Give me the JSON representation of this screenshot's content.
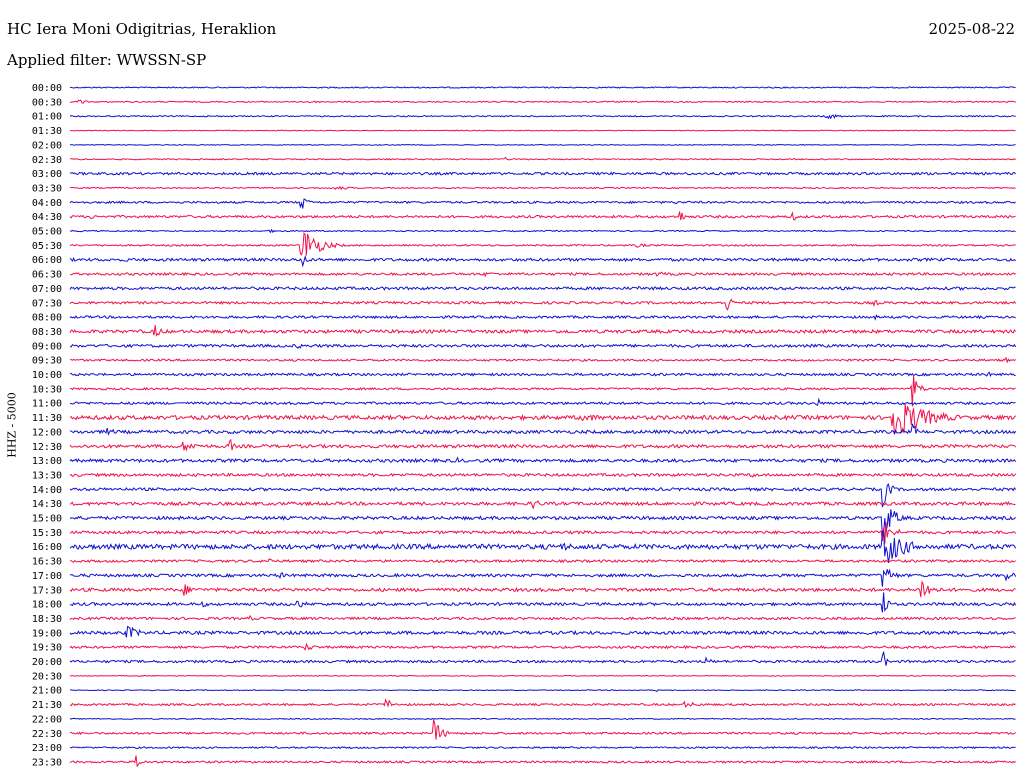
{
  "header": {
    "station": "HC Iera Moni Odigitrias, Heraklion",
    "date": "2025-08-22",
    "filter": "Applied filter: WWSSN-SP",
    "channel": "HHZ - 5000"
  },
  "chart_data": {
    "type": "line",
    "title": "HC Iera Moni Odigitrias, Heraklion",
    "ylabel": "HHZ - 5000",
    "colors": {
      "odd": "#1010d0",
      "even": "#f0104a"
    },
    "rows": [
      {
        "label": "00:00",
        "color": "blue",
        "noise": 0.6,
        "events": [
          [
            0.57,
            0.6,
            1
          ],
          [
            0.62,
            0.3,
            1
          ]
        ]
      },
      {
        "label": "00:30",
        "color": "red",
        "noise": 0.6,
        "events": [
          [
            0.01,
            2.5,
            0.8
          ],
          [
            0.25,
            1.8,
            1.5
          ],
          [
            0.62,
            1.2,
            0.5
          ]
        ]
      },
      {
        "label": "01:00",
        "color": "blue",
        "noise": 0.6,
        "events": [
          [
            0.17,
            1.0,
            1
          ],
          [
            0.8,
            3,
            1.5
          ]
        ]
      },
      {
        "label": "01:30",
        "color": "red",
        "noise": 0.4,
        "events": []
      },
      {
        "label": "02:00",
        "color": "blue",
        "noise": 0.4,
        "events": []
      },
      {
        "label": "02:30",
        "color": "red",
        "noise": 0.6,
        "events": [
          [
            0.46,
            2,
            0.3
          ]
        ]
      },
      {
        "label": "03:00",
        "color": "blue",
        "noise": 1.2,
        "events": [
          [
            0.7,
            1.2,
            1
          ]
        ]
      },
      {
        "label": "03:30",
        "color": "red",
        "noise": 0.6,
        "events": [
          [
            0.28,
            2,
            2
          ]
        ]
      },
      {
        "label": "04:00",
        "color": "blue",
        "noise": 1.0,
        "events": [
          [
            0.245,
            9,
            0.5
          ],
          [
            0.64,
            2,
            0.5
          ]
        ]
      },
      {
        "label": "04:30",
        "color": "red",
        "noise": 1.2,
        "events": [
          [
            0.02,
            3,
            0.8
          ],
          [
            0.645,
            8,
            0.4
          ],
          [
            0.765,
            4,
            0.6
          ]
        ]
      },
      {
        "label": "05:00",
        "color": "blue",
        "noise": 0.6,
        "events": [
          [
            0.21,
            1.5,
            2
          ]
        ]
      },
      {
        "label": "05:30",
        "color": "red",
        "noise": 0.8,
        "events": [
          [
            0.245,
            22,
            1.5
          ],
          [
            0.6,
            2,
            1.5
          ]
        ]
      },
      {
        "label": "06:00",
        "color": "blue",
        "noise": 1.4,
        "events": [
          [
            0.245,
            12,
            0.4
          ],
          [
            0.06,
            2,
            2
          ]
        ]
      },
      {
        "label": "06:30",
        "color": "red",
        "noise": 1.2,
        "events": [
          [
            0.44,
            2.5,
            1.5
          ],
          [
            0.62,
            2.5,
            2
          ]
        ]
      },
      {
        "label": "07:00",
        "color": "blue",
        "noise": 1.4,
        "events": [
          [
            0.6,
            2,
            5
          ]
        ]
      },
      {
        "label": "07:30",
        "color": "red",
        "noise": 1.2,
        "events": [
          [
            0.695,
            10,
            0.4
          ],
          [
            0.85,
            3,
            1
          ]
        ]
      },
      {
        "label": "08:00",
        "color": "blue",
        "noise": 1.2,
        "events": [
          [
            0.85,
            2.5,
            1
          ]
        ]
      },
      {
        "label": "08:30",
        "color": "red",
        "noise": 1.6,
        "events": [
          [
            0.09,
            7,
            0.8
          ],
          [
            0.52,
            2.5,
            3
          ]
        ]
      },
      {
        "label": "09:00",
        "color": "blue",
        "noise": 1.4,
        "events": [
          [
            0.24,
            3,
            1
          ],
          [
            0.85,
            3,
            0.8
          ]
        ]
      },
      {
        "label": "09:30",
        "color": "red",
        "noise": 1.0,
        "events": [
          [
            0.99,
            3,
            0.3
          ]
        ]
      },
      {
        "label": "10:00",
        "color": "blue",
        "noise": 1.2,
        "events": [
          [
            0.97,
            4,
            0.3
          ]
        ]
      },
      {
        "label": "10:30",
        "color": "red",
        "noise": 1.0,
        "events": [
          [
            0.89,
            20,
            0.6
          ]
        ]
      },
      {
        "label": "11:00",
        "color": "blue",
        "noise": 1.2,
        "events": [
          [
            0.79,
            6,
            0.4
          ]
        ]
      },
      {
        "label": "11:30",
        "color": "red",
        "noise": 2.0,
        "events": [
          [
            0.87,
            24,
            3
          ],
          [
            0.54,
            4,
            4
          ]
        ]
      },
      {
        "label": "12:00",
        "color": "blue",
        "noise": 1.6,
        "events": [
          [
            0.04,
            4,
            1
          ],
          [
            0.89,
            9,
            0.6
          ]
        ]
      },
      {
        "label": "12:30",
        "color": "red",
        "noise": 1.6,
        "events": [
          [
            0.12,
            5,
            2
          ],
          [
            0.17,
            8,
            0.3
          ]
        ]
      },
      {
        "label": "13:00",
        "color": "blue",
        "noise": 1.6,
        "events": [
          [
            0.41,
            3,
            1
          ]
        ]
      },
      {
        "label": "13:30",
        "color": "red",
        "noise": 1.4,
        "events": [
          [
            0.72,
            3,
            1
          ]
        ]
      },
      {
        "label": "14:00",
        "color": "blue",
        "noise": 1.4,
        "events": [
          [
            0.86,
            18,
            0.6
          ]
        ]
      },
      {
        "label": "14:30",
        "color": "red",
        "noise": 1.6,
        "events": [
          [
            0.49,
            7,
            0.6
          ]
        ]
      },
      {
        "label": "15:00",
        "color": "blue",
        "noise": 1.6,
        "events": [
          [
            0.86,
            22,
            1
          ]
        ]
      },
      {
        "label": "15:30",
        "color": "red",
        "noise": 1.4,
        "events": [
          [
            0.86,
            14,
            1
          ]
        ]
      },
      {
        "label": "16:00",
        "color": "blue",
        "noise": 2.4,
        "events": [
          [
            0.86,
            22,
            2
          ],
          [
            0.52,
            4,
            3
          ]
        ]
      },
      {
        "label": "16:30",
        "color": "red",
        "noise": 1.2,
        "events": [
          [
            0.21,
            4,
            0.6
          ]
        ]
      },
      {
        "label": "17:00",
        "color": "blue",
        "noise": 1.4,
        "events": [
          [
            0.22,
            4,
            1
          ],
          [
            0.99,
            7,
            0.6
          ],
          [
            0.86,
            14,
            0.8
          ]
        ]
      },
      {
        "label": "17:30",
        "color": "red",
        "noise": 1.6,
        "events": [
          [
            0.12,
            7,
            1
          ],
          [
            0.9,
            14,
            1
          ]
        ]
      },
      {
        "label": "18:00",
        "color": "blue",
        "noise": 1.4,
        "events": [
          [
            0.24,
            5,
            1
          ],
          [
            0.14,
            3,
            1
          ],
          [
            0.86,
            16,
            0.4
          ]
        ]
      },
      {
        "label": "18:30",
        "color": "red",
        "noise": 1.2,
        "events": [
          [
            0.19,
            3,
            0.6
          ]
        ]
      },
      {
        "label": "19:00",
        "color": "blue",
        "noise": 1.6,
        "events": [
          [
            0.06,
            8,
            1.2
          ],
          [
            0.84,
            4,
            0.6
          ]
        ]
      },
      {
        "label": "19:30",
        "color": "red",
        "noise": 1.2,
        "events": [
          [
            0.25,
            4,
            1
          ]
        ]
      },
      {
        "label": "20:00",
        "color": "blue",
        "noise": 1.2,
        "events": [
          [
            0.67,
            5,
            0.8
          ],
          [
            0.86,
            10,
            0.3
          ]
        ]
      },
      {
        "label": "20:30",
        "color": "red",
        "noise": 0.4,
        "events": []
      },
      {
        "label": "21:00",
        "color": "blue",
        "noise": 0.4,
        "events": [
          [
            0.62,
            2,
            0.2
          ]
        ]
      },
      {
        "label": "21:30",
        "color": "red",
        "noise": 1.0,
        "events": [
          [
            0.335,
            9,
            0.4
          ],
          [
            0.65,
            3,
            2
          ]
        ]
      },
      {
        "label": "22:00",
        "color": "blue",
        "noise": 0.5,
        "events": []
      },
      {
        "label": "22:30",
        "color": "red",
        "noise": 1.0,
        "events": [
          [
            0.385,
            14,
            0.8
          ]
        ]
      },
      {
        "label": "23:00",
        "color": "blue",
        "noise": 0.8,
        "events": []
      },
      {
        "label": "23:30",
        "color": "red",
        "noise": 1.0,
        "events": [
          [
            0.07,
            7,
            0.6
          ]
        ]
      }
    ]
  }
}
